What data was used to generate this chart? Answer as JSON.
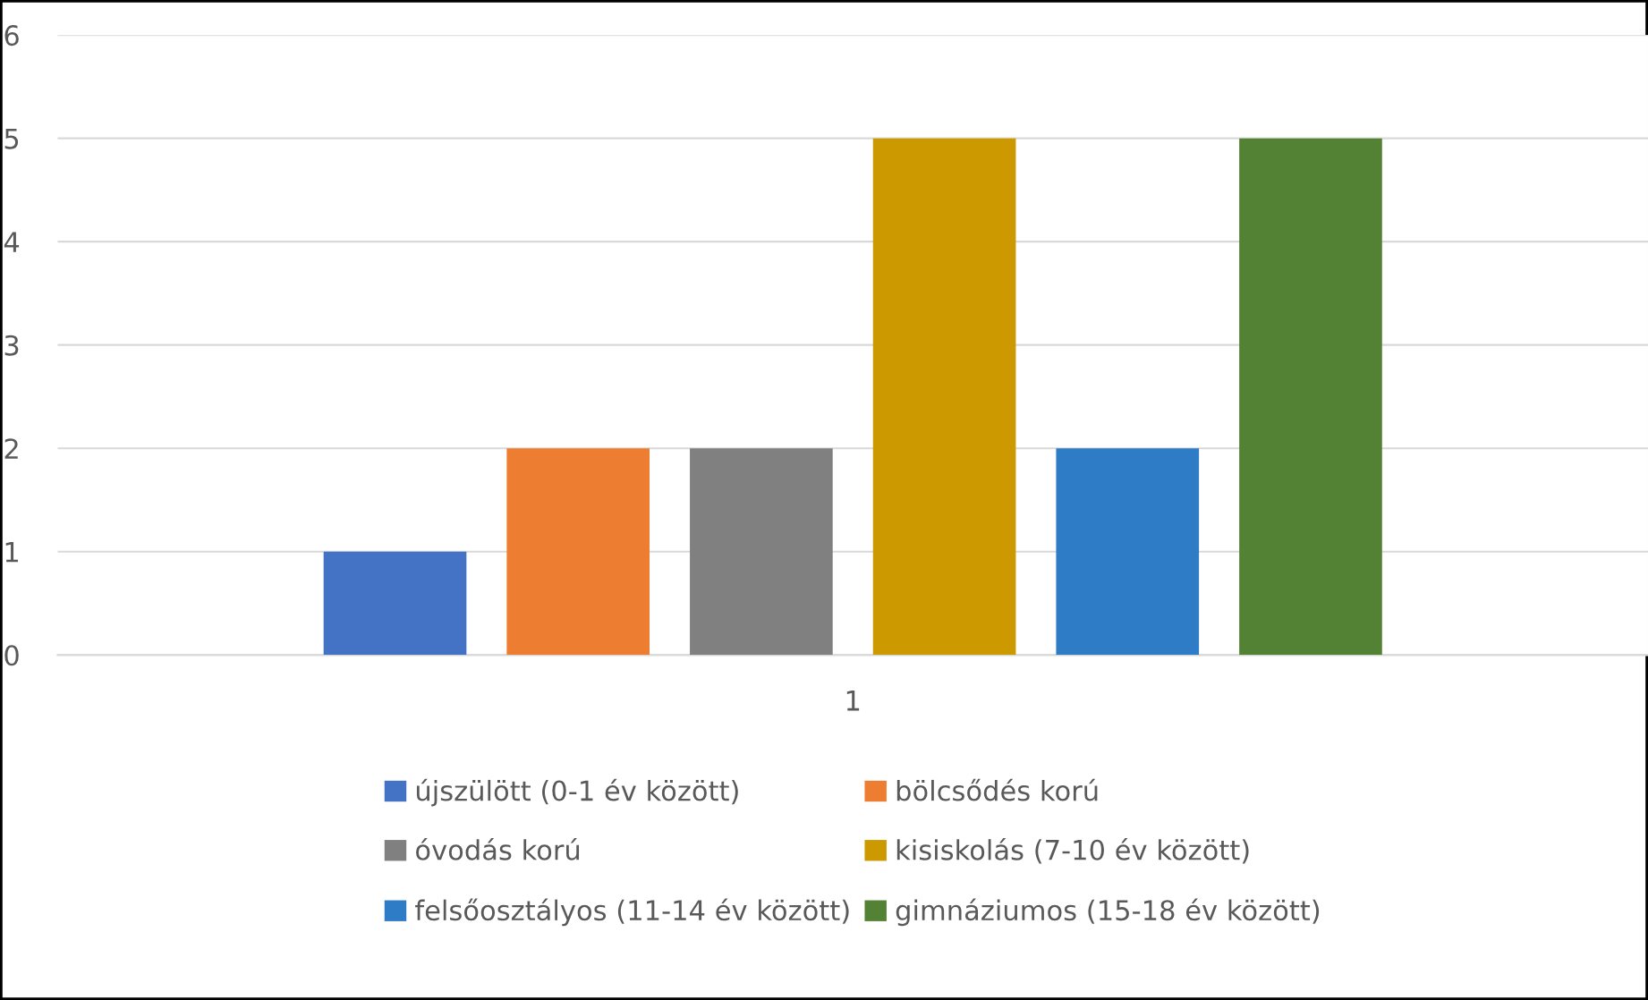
{
  "chart_data": {
    "type": "bar",
    "categories": [
      "1"
    ],
    "series": [
      {
        "name": "újszülött (0-1 év között)",
        "color": "#4472c4",
        "values": [
          1
        ]
      },
      {
        "name": "bölcsődés korú",
        "color": "#ed7d31",
        "values": [
          2
        ]
      },
      {
        "name": "óvodás korú",
        "color": "#808080",
        "values": [
          2
        ]
      },
      {
        "name": "kisiskolás (7-10 év között)",
        "color": "#cc9900",
        "values": [
          5
        ]
      },
      {
        "name": "felsőosztályos (11-14 év között)",
        "color": "#2e7bc6",
        "values": [
          2
        ]
      },
      {
        "name": "gimnáziumos (15-18 év között)",
        "color": "#548235",
        "values": [
          5
        ]
      }
    ],
    "ylim": [
      0,
      6
    ],
    "yticks": [
      0,
      1,
      2,
      3,
      4,
      5,
      6
    ],
    "grid": "y",
    "legend": "bottom"
  }
}
